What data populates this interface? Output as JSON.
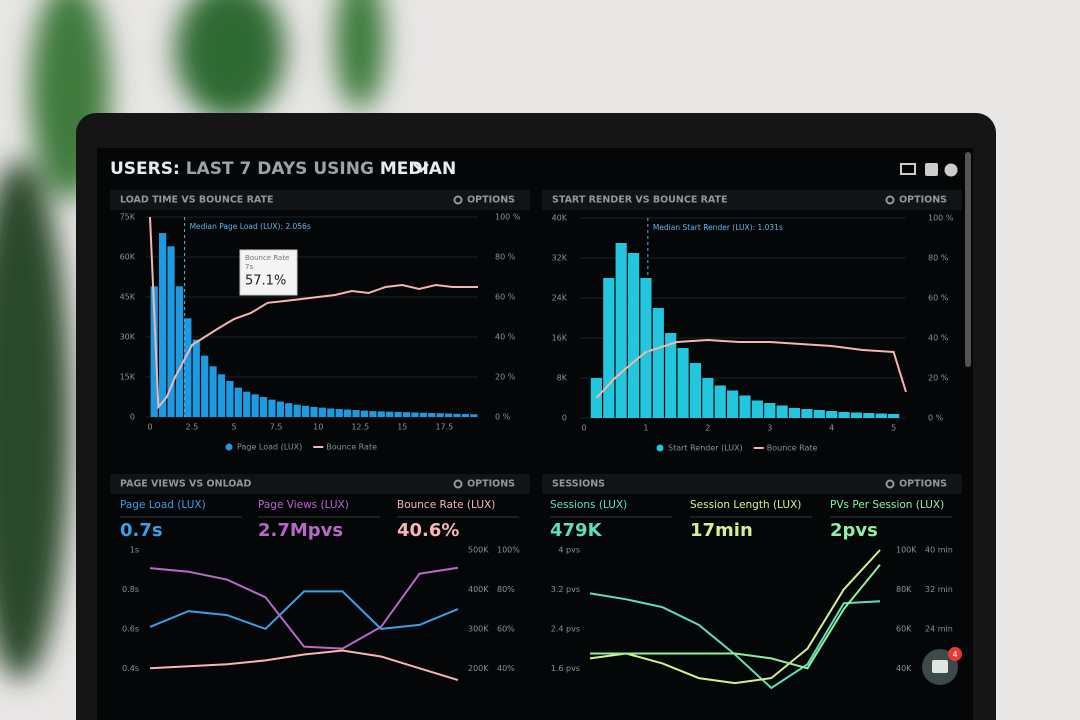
{
  "header": {
    "title_prefix": "USERS:",
    "title_range": "LAST 7 DAYS",
    "title_using": "USING",
    "title_stat": "MEDIAN",
    "notification_count": 4
  },
  "chart_data": [
    {
      "type": "histogram",
      "title": "LOAD TIME VS BOUNCE RATE",
      "options_label": "OPTIONS",
      "annotation": "Median Page Load (LUX): 2.056s",
      "median_line": 2.056,
      "tooltip": {
        "title": "Bounce Rate",
        "x_label": "7s",
        "value_label": "57.1%"
      },
      "bins": [
        0,
        0.5,
        1,
        1.5,
        2,
        2.5,
        3,
        3.5,
        4,
        4.5,
        5,
        5.5,
        6,
        6.5,
        7,
        7.5,
        8,
        8.5,
        9,
        9.5,
        10,
        10.5,
        11,
        11.5,
        12,
        12.5,
        13,
        13.5,
        14,
        14.5,
        15,
        15.5,
        16,
        16.5,
        17,
        17.5,
        18,
        18.5,
        19,
        19.5
      ],
      "series": [
        {
          "name": "Page Load (LUX)",
          "color": "#1e9be0",
          "values": [
            49000,
            69000,
            64000,
            49000,
            37000,
            29000,
            23000,
            19000,
            16000,
            13500,
            11000,
            9500,
            8500,
            7500,
            6500,
            5800,
            5200,
            4600,
            4200,
            3800,
            3500,
            3200,
            3000,
            2800,
            2600,
            2400,
            2200,
            2100,
            2000,
            1900,
            1800,
            1700,
            1600,
            1500,
            1400,
            1300,
            1200,
            1100,
            1000
          ]
        },
        {
          "name": "Bounce Rate",
          "color": "#f4b6b0",
          "type": "line",
          "axis": "y2",
          "x": [
            0,
            0.5,
            1,
            1.5,
            2.5,
            4,
            5,
            6,
            7,
            8,
            9,
            10,
            11,
            12,
            13,
            14,
            15,
            16,
            17,
            18,
            19.5
          ],
          "values": [
            100,
            5,
            10,
            20,
            36,
            44,
            49,
            52,
            57.1,
            58,
            59,
            60,
            61,
            63,
            62,
            65,
            66,
            64,
            66,
            65,
            65
          ]
        }
      ],
      "xlim": [
        0,
        19.5
      ],
      "xticks": [
        0,
        2.5,
        5,
        7.5,
        10,
        12.5,
        15,
        17.5
      ],
      "ylim": [
        0,
        75000
      ],
      "yticks": [
        0,
        {
          "value": 15000,
          "label": "15K"
        },
        {
          "value": 30000,
          "label": "30K"
        },
        {
          "value": 45000,
          "label": "45K"
        },
        {
          "value": 60000,
          "label": "60K"
        },
        {
          "value": 75000,
          "label": "75K"
        }
      ],
      "y2lim": [
        0,
        100
      ],
      "y2ticks": [
        {
          "value": 0,
          "label": "0 %"
        },
        {
          "value": 20,
          "label": "20 %"
        },
        {
          "value": 40,
          "label": "40 %"
        },
        {
          "value": 60,
          "label": "60 %"
        },
        {
          "value": 80,
          "label": "80 %"
        },
        {
          "value": 100,
          "label": "100 %"
        }
      ],
      "grid": true,
      "legend": "bottom"
    },
    {
      "type": "histogram",
      "title": "START RENDER VS BOUNCE RATE",
      "options_label": "OPTIONS",
      "annotation": "Median Start Render (LUX): 1.031s",
      "median_line": 1.031,
      "bins": [
        0.1,
        0.3,
        0.5,
        0.7,
        0.9,
        1.1,
        1.3,
        1.5,
        1.7,
        1.9,
        2.1,
        2.3,
        2.5,
        2.7,
        2.9,
        3.1,
        3.3,
        3.5,
        3.7,
        3.9,
        4.1,
        4.3,
        4.5,
        4.7,
        4.9,
        5.1
      ],
      "series": [
        {
          "name": "Start Render (LUX)",
          "color": "#22c6dd",
          "values": [
            8000,
            28000,
            35000,
            33000,
            28000,
            22000,
            17000,
            14000,
            11000,
            8000,
            6500,
            5500,
            4500,
            3500,
            3000,
            2500,
            2000,
            1800,
            1600,
            1400,
            1200,
            1100,
            1000,
            900,
            800
          ]
        },
        {
          "name": "Bounce Rate",
          "color": "#f4b6b0",
          "type": "line",
          "axis": "y2",
          "x": [
            0.2,
            0.5,
            0.8,
            1,
            1.5,
            2,
            2.5,
            3,
            3.5,
            4,
            4.5,
            5,
            5.2
          ],
          "values": [
            10,
            20,
            28,
            33,
            38,
            39,
            38,
            38,
            37,
            36,
            34,
            33,
            13
          ]
        }
      ],
      "xlim": [
        0,
        5.2
      ],
      "xticks": [
        0,
        1,
        2,
        3,
        4,
        5
      ],
      "ylim": [
        0,
        40000
      ],
      "yticks": [
        0,
        {
          "value": 8000,
          "label": "8K"
        },
        {
          "value": 16000,
          "label": "16K"
        },
        {
          "value": 24000,
          "label": "24K"
        },
        {
          "value": 32000,
          "label": "32K"
        },
        {
          "value": 40000,
          "label": "40K"
        }
      ],
      "y2lim": [
        0,
        100
      ],
      "y2ticks": [
        {
          "value": 0,
          "label": "0 %"
        },
        {
          "value": 20,
          "label": "20 %"
        },
        {
          "value": 40,
          "label": "40 %"
        },
        {
          "value": 60,
          "label": "60 %"
        },
        {
          "value": 80,
          "label": "80 %"
        },
        {
          "value": 100,
          "label": "100 %"
        }
      ],
      "grid": true,
      "legend": "bottom"
    },
    {
      "type": "line",
      "title": "PAGE VIEWS VS ONLOAD",
      "options_label": "OPTIONS",
      "metrics": [
        {
          "label": "Page Load (LUX)",
          "value": "0.7s",
          "color": "#3aa0e8"
        },
        {
          "label": "Page Views (LUX)",
          "value": "2.7Mpvs",
          "color": "#b768c8"
        },
        {
          "label": "Bounce Rate (LUX)",
          "value": "40.6%",
          "color": "#f6b6b6"
        }
      ],
      "x": [
        0,
        1,
        2,
        3,
        4,
        5,
        6,
        7,
        8
      ],
      "xlim": [
        0,
        8
      ],
      "series": [
        {
          "color": "#3aa0e8",
          "values": [
            0.61,
            0.69,
            0.67,
            0.6,
            0.79,
            0.79,
            0.6,
            0.62,
            0.7
          ]
        },
        {
          "color": "#b768c8",
          "axis": "y2",
          "values": [
            454000,
            445000,
            425000,
            380000,
            255000,
            250000,
            305000,
            440000,
            455000
          ]
        },
        {
          "color": "#f6b6b6",
          "axis": "y3",
          "values": [
            40,
            41,
            42,
            44,
            47,
            49,
            46,
            40,
            34
          ]
        }
      ],
      "ylim": [
        0.3,
        1
      ],
      "yticks": [
        {
          "value": 0.4,
          "label": "0.4s"
        },
        {
          "value": 0.6,
          "label": "0.6s"
        },
        {
          "value": 0.8,
          "label": "0.8s"
        },
        {
          "value": 1,
          "label": "1s"
        }
      ],
      "y2lim": [
        150000,
        500000
      ],
      "y2ticks": [
        {
          "value": 200000,
          "label": "200K"
        },
        {
          "value": 300000,
          "label": "300K"
        },
        {
          "value": 400000,
          "label": "400K"
        },
        {
          "value": 500000,
          "label": "500K"
        }
      ],
      "y3lim": [
        30,
        100
      ],
      "y3ticks": [
        {
          "value": 40,
          "label": "40%"
        },
        {
          "value": 60,
          "label": "60%"
        },
        {
          "value": 80,
          "label": "80%"
        },
        {
          "value": 100,
          "label": "100%"
        }
      ],
      "grid": false
    },
    {
      "type": "line",
      "title": "SESSIONS",
      "options_label": "OPTIONS",
      "metrics": [
        {
          "label": "Sessions (LUX)",
          "value": "479K",
          "color": "#5fe0b8"
        },
        {
          "label": "Session Length (LUX)",
          "value": "17min",
          "color": "#d8f08a"
        },
        {
          "label": "PVs Per Session (LUX)",
          "value": "2pvs",
          "color": "#8ff0a0"
        }
      ],
      "x": [
        0,
        1,
        2,
        3,
        4,
        5,
        6,
        7,
        8
      ],
      "xlim": [
        0,
        8
      ],
      "series": [
        {
          "color": "#5fe0b8",
          "axis": "y2",
          "values": [
            78000,
            75000,
            71000,
            62000,
            47000,
            30000,
            42000,
            73000,
            74000
          ]
        },
        {
          "color": "#d8f08a",
          "axis": "y3",
          "values": [
            18,
            19,
            17,
            14,
            13,
            14,
            20,
            32,
            40
          ]
        },
        {
          "color": "#8ff0a0",
          "values": [
            1.9,
            1.9,
            1.9,
            1.9,
            1.9,
            1.8,
            1.6,
            2.8,
            3.7
          ]
        }
      ],
      "ylim": [
        1.2,
        4
      ],
      "yticks": [
        {
          "value": 1.6,
          "label": "1.6 pvs"
        },
        {
          "value": 2.4,
          "label": "2.4 pvs"
        },
        {
          "value": 3.2,
          "label": "3.2 pvs"
        },
        {
          "value": 4,
          "label": "4 pvs"
        }
      ],
      "y2lim": [
        30000,
        100000
      ],
      "y2ticks": [
        {
          "value": 40000,
          "label": "40K"
        },
        {
          "value": 60000,
          "label": "60K"
        },
        {
          "value": 80000,
          "label": "80K"
        },
        {
          "value": 100000,
          "label": "100K"
        }
      ],
      "y3lim": [
        12,
        40
      ],
      "y3ticks": [
        {
          "value": 24,
          "label": "24 min"
        },
        {
          "value": 32,
          "label": "32 min"
        },
        {
          "value": 40,
          "label": "40 min"
        }
      ],
      "grid": false
    }
  ]
}
